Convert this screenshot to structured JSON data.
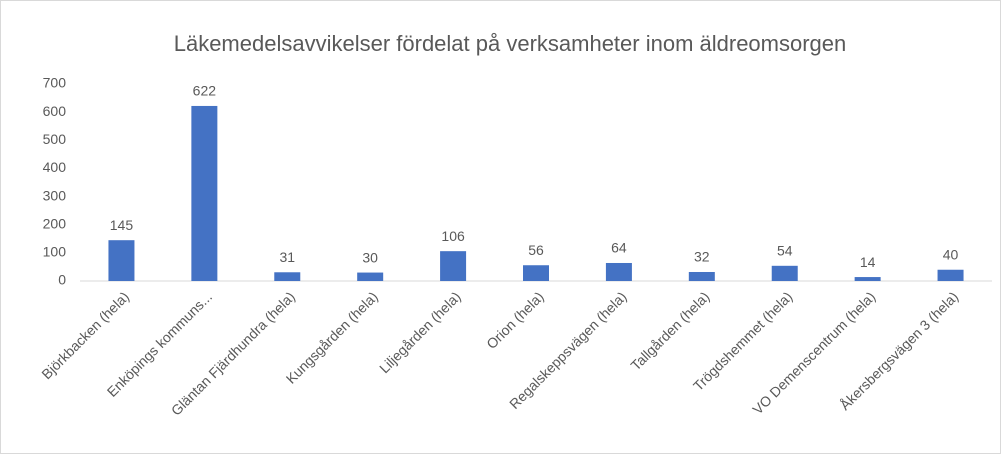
{
  "chart_data": {
    "type": "bar",
    "title": "Läkemedelsavvikelser  fördelat på verksamheter inom äldreomsorgen",
    "categories": [
      "Björkbacken (hela)",
      "Enköpings kommuns...",
      "Gläntan Fjärdhundra (hela)",
      "Kungsgården (hela)",
      "Liljegården (hela)",
      "Orion (hela)",
      "Regalskeppsvägen (hela)",
      "Tallgården (hela)",
      "Trögdshemmet (hela)",
      "VO Demenscentrum (hela)",
      "Åkersbergsvägen 3 (hela)"
    ],
    "values": [
      145,
      622,
      31,
      30,
      106,
      56,
      64,
      32,
      54,
      14,
      40
    ],
    "color": "#4472c4",
    "ylim": [
      0,
      700
    ],
    "yticks": [
      0,
      100,
      200,
      300,
      400,
      500,
      600,
      700
    ],
    "grid": false
  }
}
